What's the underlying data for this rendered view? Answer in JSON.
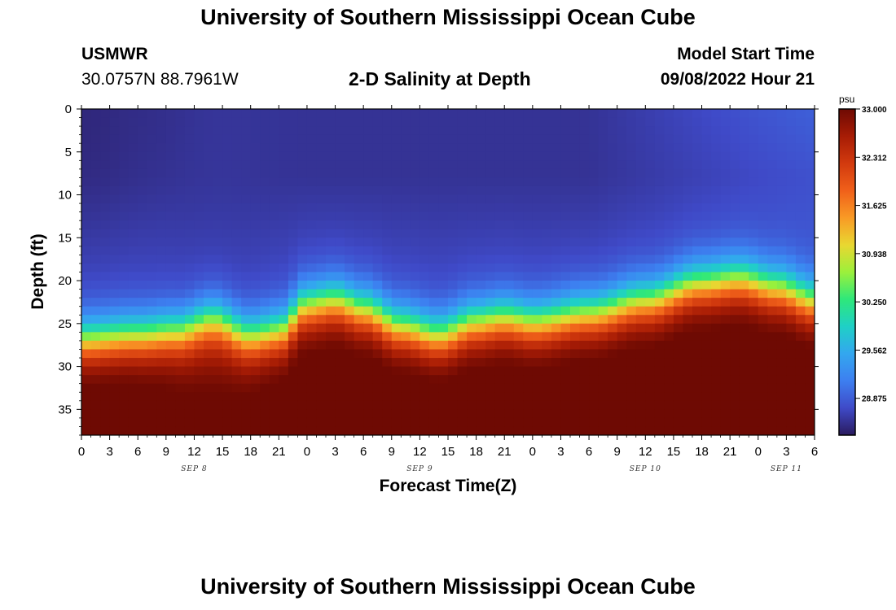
{
  "header": {
    "title": "University of Southern Mississippi Ocean Cube",
    "station": "USMWR",
    "coords": "30.0757N  88.7961W",
    "subtitle": "2-D Salinity at Depth",
    "model_label": "Model Start Time",
    "model_time": "09/08/2022 Hour 21"
  },
  "footer": {
    "title": "University of Southern Mississippi Ocean Cube"
  },
  "chart_data": {
    "type": "heatmap",
    "xlabel": "Forecast Time(Z)",
    "ylabel": "Depth (ft)",
    "x_tick_labels": [
      "0",
      "3",
      "6",
      "9",
      "12",
      "15",
      "18",
      "21",
      "0",
      "3",
      "6",
      "9",
      "12",
      "15",
      "18",
      "21",
      "0",
      "3",
      "6",
      "9",
      "12",
      "15",
      "18",
      "21",
      "0",
      "3",
      "6"
    ],
    "date_labels": [
      {
        "label": "SEP 8",
        "hour": 12
      },
      {
        "label": "SEP 9",
        "hour": 36
      },
      {
        "label": "SEP 10",
        "hour": 60
      },
      {
        "label": "SEP 11",
        "hour": 75
      }
    ],
    "xlim": [
      0,
      78
    ],
    "y_ticks": [
      0,
      5,
      10,
      15,
      20,
      25,
      30,
      35
    ],
    "ylim": [
      0,
      38
    ],
    "colorbar": {
      "unit": "psu",
      "labels": [
        "33.000",
        "32.312",
        "31.625",
        "30.938",
        "30.250",
        "29.562",
        "28.875"
      ],
      "range": [
        28.35,
        33.0
      ],
      "colors": [
        "#2a1a5e",
        "#3f4ac8",
        "#3d7ff0",
        "#33a7ef",
        "#1fd0c6",
        "#2ee87a",
        "#9cf03b",
        "#e9d731",
        "#f99a25",
        "#f0601a",
        "#d23a0e",
        "#a71c05",
        "#6e0a03"
      ]
    },
    "z_model": {
      "deep_value": 32.8,
      "surface_value": 28.55,
      "halocline_depth": [
        {
          "hour": 0,
          "depth": 27.0
        },
        {
          "hour": 6,
          "depth": 26.5
        },
        {
          "hour": 10,
          "depth": 26.0
        },
        {
          "hour": 14,
          "depth": 24.5
        },
        {
          "hour": 18,
          "depth": 26.5
        },
        {
          "hour": 21,
          "depth": 26.0
        },
        {
          "hour": 24,
          "depth": 23.0
        },
        {
          "hour": 27,
          "depth": 22.5
        },
        {
          "hour": 30,
          "depth": 23.5
        },
        {
          "hour": 34,
          "depth": 25.5
        },
        {
          "hour": 38,
          "depth": 26.5
        },
        {
          "hour": 42,
          "depth": 25.0
        },
        {
          "hour": 45,
          "depth": 24.5
        },
        {
          "hour": 48,
          "depth": 25.0
        },
        {
          "hour": 54,
          "depth": 24.0
        },
        {
          "hour": 60,
          "depth": 22.5
        },
        {
          "hour": 66,
          "depth": 20.5
        },
        {
          "hour": 70,
          "depth": 20.0
        },
        {
          "hour": 74,
          "depth": 21.0
        },
        {
          "hour": 78,
          "depth": 22.5
        }
      ],
      "surface_lens": [
        {
          "hour": 0,
          "depth": 13,
          "value": 28.4
        },
        {
          "hour": 10,
          "depth": 8,
          "value": 28.45
        },
        {
          "hour": 14,
          "depth": 20,
          "value": 28.6
        }
      ]
    }
  }
}
